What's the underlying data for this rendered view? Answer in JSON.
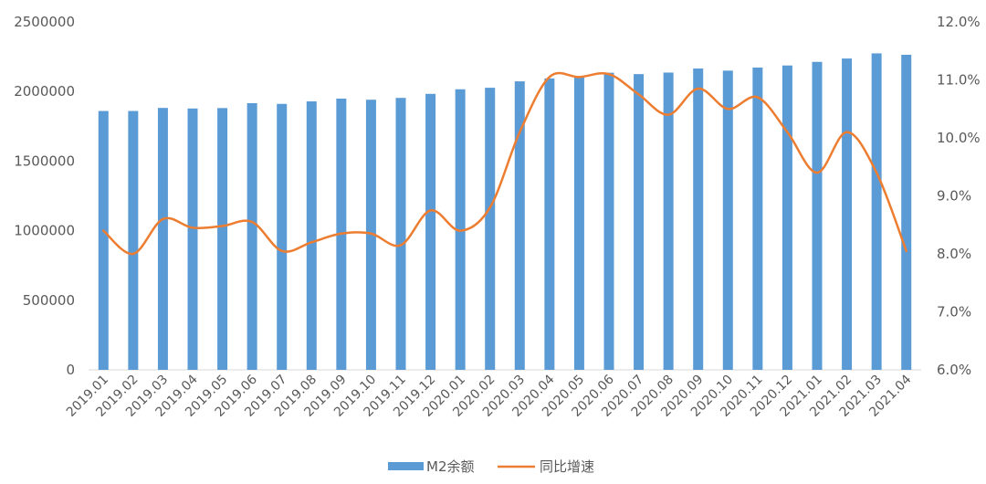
{
  "chart_data": {
    "type": "bar",
    "categories": [
      "2019.01",
      "2019.02",
      "2019.03",
      "2019.04",
      "2019.05",
      "2019.06",
      "2019.07",
      "2019.08",
      "2019.09",
      "2019.10",
      "2019.11",
      "2019.12",
      "2020.01",
      "2020.02",
      "2020.03",
      "2020.04",
      "2020.05",
      "2020.06",
      "2020.07",
      "2020.08",
      "2020.09",
      "2020.10",
      "2020.11",
      "2020.12",
      "2021.01",
      "2021.02",
      "2021.03",
      "2021.04"
    ],
    "series": [
      {
        "name": "M2余额",
        "type": "bar",
        "axis": "left",
        "color": "#5B9BD5",
        "values": [
          1860000,
          1860000,
          1882000,
          1878000,
          1881000,
          1916000,
          1911000,
          1929000,
          1949000,
          1941000,
          1954000,
          1983000,
          2016000,
          2027000,
          2073000,
          2094000,
          2101000,
          2135000,
          2125000,
          2136000,
          2165000,
          2150000,
          2172000,
          2187000,
          2213000,
          2237000,
          2274000,
          2264000
        ]
      },
      {
        "name": "同比增速",
        "type": "line",
        "axis": "right",
        "color": "#ED7D31",
        "values": [
          8.4,
          8.0,
          8.6,
          8.45,
          8.48,
          8.55,
          8.05,
          8.2,
          8.35,
          8.35,
          8.15,
          8.75,
          8.4,
          8.8,
          10.1,
          11.05,
          11.05,
          11.1,
          10.75,
          10.4,
          10.85,
          10.5,
          10.7,
          10.1,
          9.4,
          10.1,
          9.4,
          8.05
        ]
      }
    ],
    "y_left": {
      "ylim": [
        0,
        2500000
      ],
      "ticks": [
        "0",
        "500000",
        "1000000",
        "1500000",
        "2000000",
        "2500000"
      ]
    },
    "y_right": {
      "ylim": [
        6.0,
        12.0
      ],
      "ticks": [
        "6.0%",
        "7.0%",
        "8.0%",
        "9.0%",
        "10.0%",
        "11.0%",
        "12.0%"
      ]
    },
    "grid": false,
    "legend_position": "bottom"
  }
}
